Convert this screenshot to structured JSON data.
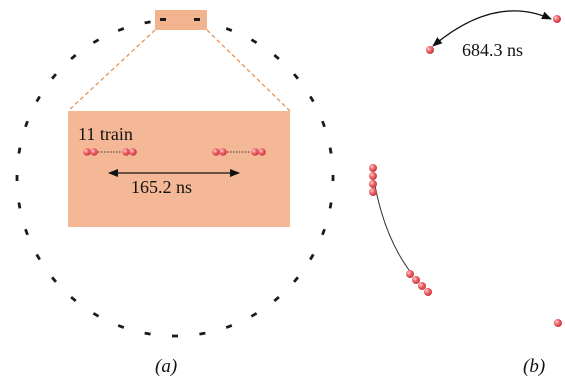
{
  "panel_a": {
    "label": "(a)",
    "inset_label": "11 train",
    "spacing_label": "165.2 ns",
    "colors": {
      "zoom_box": "#f2b48e",
      "zoom_line": "#e8914e",
      "bunch": "#e8535b",
      "dash": "#1a1a1a"
    }
  },
  "panel_b": {
    "label": "(b)",
    "gap_label": "684.3 ns",
    "colors": {
      "bunch": "#e8535b",
      "arc": "#333333"
    }
  }
}
